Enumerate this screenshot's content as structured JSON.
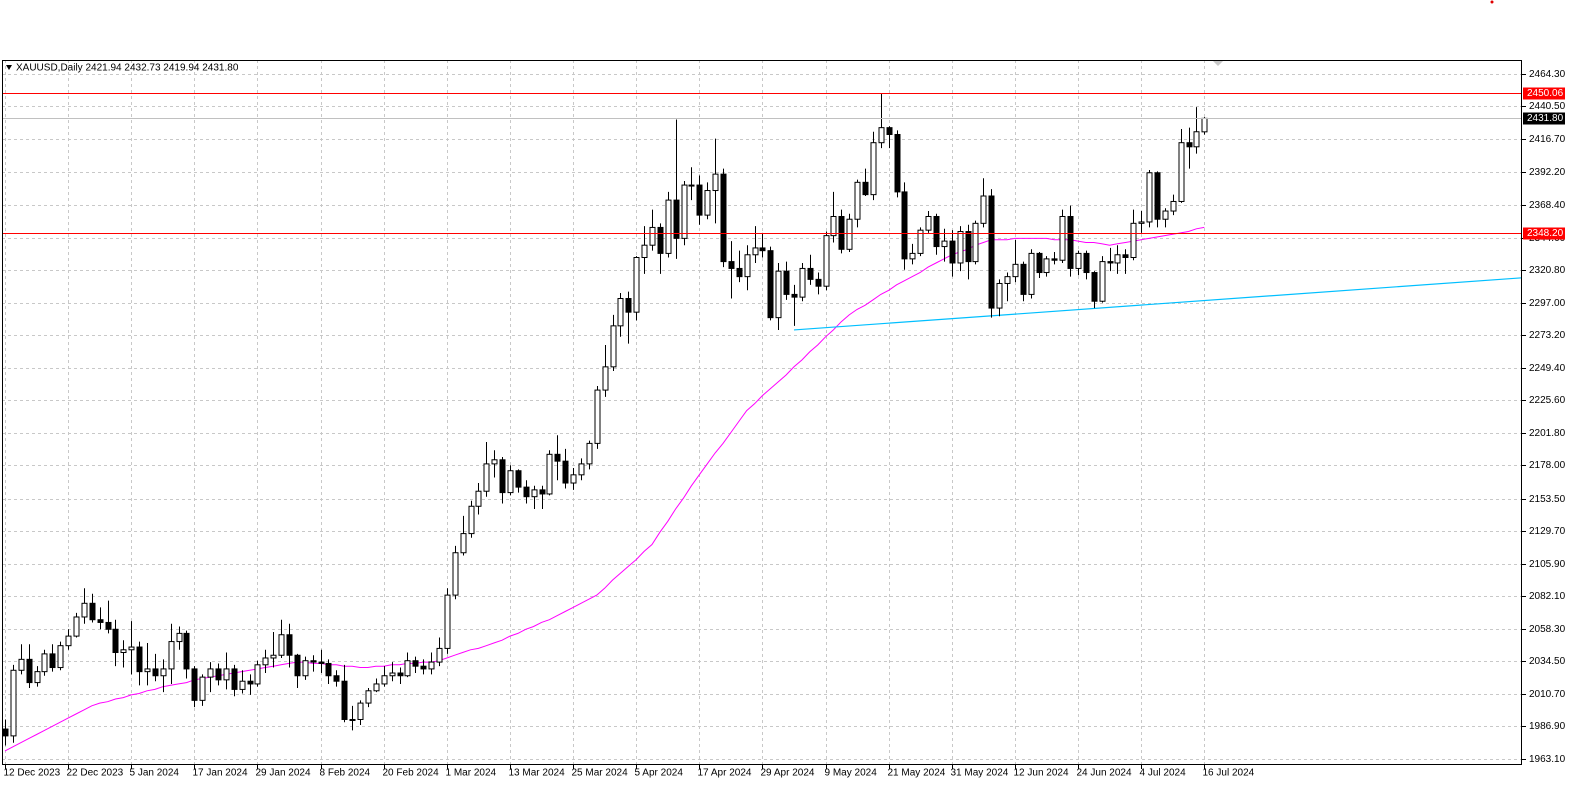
{
  "chart_data": {
    "type": "candlestick",
    "title": "XAUUSD,Daily  2421.94 2432.73 2419.94 2431.80",
    "categories": [
      "12 Dec 2023",
      null,
      null,
      null,
      null,
      null,
      null,
      null,
      "22 Dec 2023",
      null,
      null,
      null,
      null,
      null,
      null,
      null,
      "5 Jan 2024",
      null,
      null,
      null,
      null,
      null,
      null,
      null,
      "17 Jan 2024",
      null,
      null,
      null,
      null,
      null,
      null,
      null,
      "29 Jan 2024",
      null,
      null,
      null,
      null,
      null,
      null,
      null,
      "8 Feb 2024",
      null,
      null,
      null,
      null,
      null,
      null,
      null,
      "20 Feb 2024",
      null,
      null,
      null,
      null,
      null,
      null,
      null,
      "1 Mar 2024",
      null,
      null,
      null,
      null,
      null,
      null,
      null,
      "13 Mar 2024",
      null,
      null,
      null,
      null,
      null,
      null,
      null,
      "25 Mar 2024",
      null,
      null,
      null,
      null,
      null,
      null,
      null,
      "5 Apr 2024",
      null,
      null,
      null,
      null,
      null,
      null,
      null,
      "17 Apr 2024",
      null,
      null,
      null,
      null,
      null,
      null,
      null,
      "29 Apr 2024",
      null,
      null,
      null,
      null,
      null,
      null,
      null,
      "9 May 2024",
      null,
      null,
      null,
      null,
      null,
      null,
      null,
      "21 May 2024",
      null,
      null,
      null,
      null,
      null,
      null,
      null,
      "31 May 2024",
      null,
      null,
      null,
      null,
      null,
      null,
      null,
      "12 Jun 2024",
      null,
      null,
      null,
      null,
      null,
      null,
      null,
      "24 Jun 2024",
      null,
      null,
      null,
      null,
      null,
      null,
      null,
      "4 Jul 2024",
      null,
      null,
      null,
      null,
      null,
      null,
      null,
      "16 Jul 2024"
    ],
    "open": [
      1985,
      1980,
      2028,
      2036,
      2019,
      2027,
      2040,
      2030,
      2046,
      2053,
      2067,
      2077,
      2065,
      2063,
      2058,
      2041,
      2043,
      2045,
      2027,
      2029,
      2024,
      2029,
      2049,
      2055,
      2029,
      2006,
      2023,
      2029,
      2021,
      2029,
      2014,
      2020,
      2018,
      2032,
      2037,
      2039,
      2054,
      2039,
      2024,
      2035,
      2034,
      2033,
      2024,
      2020,
      1992,
      1992,
      2004,
      2013,
      2018,
      2024,
      2026,
      2024,
      2035,
      2031,
      2029,
      2034,
      2044,
      2083,
      2114,
      2128,
      2148,
      2159,
      2179,
      2182,
      2158,
      2174,
      2162,
      2155,
      2160,
      2157,
      2186,
      2181,
      2165,
      2171,
      2179,
      2194,
      2233,
      2250,
      2280,
      2300,
      2290,
      2330,
      2339,
      2352,
      2333,
      2372,
      2344,
      2383,
      2383,
      2361,
      2379,
      2391,
      2327,
      2322,
      2316,
      2332,
      2337,
      2335,
      2286,
      2320,
      2303,
      2301,
      2322,
      2314,
      2309,
      2346,
      2360,
      2336,
      2358,
      2385,
      2376,
      2414,
      2425,
      2420,
      2378,
      2329,
      2333,
      2350,
      2360,
      2338,
      2342,
      2326,
      2349,
      2327,
      2355,
      2375,
      2293,
      2311,
      2316,
      2325,
      2303,
      2333,
      2319,
      2329,
      2328,
      2360,
      2322,
      2333,
      2319,
      2298,
      2327,
      2326,
      2332,
      2330,
      2355,
      2356,
      2392,
      2358,
      2364,
      2371,
      2414,
      2411,
      2421.94
    ],
    "high": [
      1992,
      2032,
      2047,
      2047,
      2031,
      2043,
      2047,
      2049,
      2058,
      2070,
      2088,
      2084,
      2074,
      2079,
      2065,
      2050,
      2064,
      2049,
      2048,
      2040,
      2036,
      2062,
      2060,
      2057,
      2031,
      2025,
      2034,
      2033,
      2041,
      2032,
      2028,
      2025,
      2035,
      2043,
      2056,
      2065,
      2062,
      2040,
      2038,
      2039,
      2043,
      2036,
      2028,
      2032,
      2002,
      2006,
      2015,
      2022,
      2031,
      2034,
      2030,
      2041,
      2038,
      2036,
      2041,
      2052,
      2088,
      2119,
      2141,
      2152,
      2165,
      2195,
      2189,
      2184,
      2178,
      2175,
      2167,
      2163,
      2163,
      2189,
      2200,
      2190,
      2176,
      2183,
      2196,
      2236,
      2266,
      2288,
      2304,
      2305,
      2331,
      2353,
      2365,
      2355,
      2378,
      2431,
      2386,
      2396,
      2390,
      2385,
      2417,
      2395,
      2342,
      2335,
      2339,
      2353,
      2348,
      2338,
      2326,
      2327,
      2310,
      2326,
      2332,
      2319,
      2349,
      2378,
      2365,
      2362,
      2387,
      2395,
      2422,
      2450,
      2426,
      2423,
      2385,
      2340,
      2352,
      2364,
      2362,
      2351,
      2350,
      2353,
      2354,
      2357,
      2388,
      2380,
      2314,
      2319,
      2343,
      2327,
      2336,
      2334,
      2331,
      2334,
      2365,
      2368,
      2335,
      2335,
      2320,
      2331,
      2337,
      2339,
      2336,
      2365,
      2364,
      2394,
      2393,
      2366,
      2376,
      2424,
      2425,
      2440,
      2432.73
    ],
    "low": [
      1973,
      1975,
      2025,
      2015,
      2016,
      2024,
      2027,
      2028,
      2043,
      2052,
      2062,
      2063,
      2058,
      2055,
      2031,
      2030,
      2025,
      2017,
      2017,
      2020,
      2012,
      2018,
      2043,
      2022,
      2001,
      2002,
      2012,
      2017,
      2014,
      2009,
      2011,
      2010,
      2016,
      2026,
      2030,
      2037,
      2030,
      2015,
      2021,
      2027,
      2026,
      2018,
      2016,
      1990,
      1984,
      1988,
      2001,
      2012,
      2016,
      2020,
      2018,
      2023,
      2026,
      2025,
      2025,
      2031,
      2040,
      2080,
      2112,
      2125,
      2142,
      2155,
      2169,
      2150,
      2156,
      2158,
      2150,
      2146,
      2146,
      2156,
      2167,
      2161,
      2160,
      2167,
      2175,
      2190,
      2228,
      2247,
      2272,
      2267,
      2284,
      2318,
      2335,
      2318,
      2330,
      2329,
      2339,
      2372,
      2354,
      2358,
      2355,
      2323,
      2300,
      2312,
      2306,
      2326,
      2330,
      2284,
      2277,
      2299,
      2280,
      2298,
      2310,
      2303,
      2306,
      2341,
      2333,
      2334,
      2352,
      2375,
      2372,
      2410,
      2410,
      2374,
      2321,
      2325,
      2331,
      2348,
      2332,
      2327,
      2316,
      2320,
      2314,
      2325,
      2352,
      2286,
      2287,
      2298,
      2312,
      2298,
      2300,
      2315,
      2316,
      2325,
      2326,
      2316,
      2317,
      2314,
      2293,
      2297,
      2320,
      2318,
      2318,
      2328,
      2348,
      2352,
      2352,
      2352,
      2361,
      2370,
      2395,
      2406,
      2419.94
    ],
    "close": [
      1980,
      2028,
      2036,
      2019,
      2027,
      2040,
      2030,
      2046,
      2053,
      2067,
      2077,
      2065,
      2063,
      2058,
      2041,
      2043,
      2045,
      2027,
      2029,
      2024,
      2029,
      2049,
      2055,
      2029,
      2006,
      2023,
      2029,
      2021,
      2029,
      2014,
      2020,
      2018,
      2032,
      2037,
      2039,
      2054,
      2039,
      2024,
      2035,
      2034,
      2033,
      2024,
      2020,
      1992,
      1992,
      2004,
      2013,
      2018,
      2024,
      2026,
      2024,
      2035,
      2031,
      2029,
      2034,
      2044,
      2083,
      2114,
      2128,
      2148,
      2159,
      2179,
      2182,
      2158,
      2174,
      2162,
      2155,
      2160,
      2157,
      2186,
      2181,
      2165,
      2171,
      2179,
      2194,
      2233,
      2250,
      2280,
      2300,
      2290,
      2330,
      2339,
      2352,
      2333,
      2372,
      2344,
      2383,
      2383,
      2361,
      2379,
      2391,
      2327,
      2322,
      2316,
      2332,
      2337,
      2335,
      2286,
      2320,
      2303,
      2301,
      2322,
      2314,
      2309,
      2346,
      2360,
      2336,
      2358,
      2385,
      2376,
      2414,
      2425,
      2420,
      2378,
      2329,
      2333,
      2350,
      2360,
      2338,
      2342,
      2326,
      2349,
      2327,
      2355,
      2375,
      2293,
      2311,
      2316,
      2325,
      2303,
      2333,
      2319,
      2329,
      2328,
      2360,
      2322,
      2333,
      2319,
      2298,
      2327,
      2326,
      2332,
      2330,
      2355,
      2356,
      2392,
      2358,
      2364,
      2371,
      2414,
      2411,
      2422,
      2431.8
    ],
    "bull_color": "#ffffff",
    "bear_color": "#000000",
    "ma": {
      "color": "#ff00ff",
      "values": [
        1969,
        1972,
        1975,
        1978,
        1981,
        1984,
        1987,
        1990,
        1993,
        1996,
        1999,
        2002,
        2004,
        2005,
        2007,
        2008,
        2010,
        2011,
        2013,
        2014,
        2016,
        2017,
        2018,
        2019,
        2021,
        2022,
        2023,
        2024,
        2025,
        2026,
        2027,
        2028,
        2029,
        2030,
        2031,
        2032,
        2033,
        2034,
        2034,
        2033,
        2033,
        2032,
        2032,
        2031,
        2031,
        2030,
        2030,
        2031,
        2031,
        2032,
        2032,
        2033,
        2033,
        2034,
        2034,
        2035,
        2037,
        2039,
        2041,
        2043,
        2044,
        2046,
        2048,
        2050,
        2053,
        2055,
        2058,
        2060,
        2063,
        2065,
        2068,
        2071,
        2074,
        2077,
        2080,
        2083,
        2088,
        2094,
        2099,
        2104,
        2109,
        2115,
        2120,
        2129,
        2137,
        2146,
        2154,
        2163,
        2171,
        2179,
        2187,
        2194,
        2202,
        2210,
        2218,
        2223,
        2229,
        2234,
        2239,
        2244,
        2250,
        2255,
        2261,
        2266,
        2272,
        2277,
        2283,
        2288,
        2292,
        2295,
        2299,
        2303,
        2306,
        2310,
        2313,
        2316,
        2319,
        2323,
        2326,
        2329,
        2332,
        2334,
        2336,
        2339,
        2341,
        2343,
        2343,
        2343,
        2344,
        2344,
        2344,
        2344,
        2344,
        2343,
        2343,
        2343,
        2342,
        2341,
        2341,
        2340,
        2339,
        2340,
        2341,
        2342,
        2343,
        2344,
        2345,
        2346,
        2347,
        2348,
        2349,
        2351,
        2352
      ]
    },
    "trendline": {
      "color": "#00bfff",
      "points": [
        [
          100,
          2277
        ],
        [
          152,
          2298.5
        ]
      ]
    },
    "hlines": [
      {
        "value": 2450.06,
        "label": "2450.06",
        "color": "#ff0000",
        "label_bg": "#ff0000",
        "label_color": "#ffffff"
      },
      {
        "value": 2348.2,
        "label": "2348.20",
        "color": "#ff0000",
        "label_bg": "#ff0000",
        "label_color": "#ffffff"
      },
      {
        "value": 2431.8,
        "label": "2431.80",
        "color": "#c0c0c0",
        "label_bg": "#000000",
        "label_color": "#ffffff"
      }
    ],
    "ylim": [
      1958.7,
      2474.5
    ],
    "yticks": [
      {
        "value": 1963.1,
        "label": "1963.10"
      },
      {
        "value": 1986.9,
        "label": "1986.90"
      },
      {
        "value": 2010.7,
        "label": "2010.70"
      },
      {
        "value": 2034.5,
        "label": "2034.50"
      },
      {
        "value": 2058.3,
        "label": "2058.30"
      },
      {
        "value": 2082.1,
        "label": "2082.10"
      },
      {
        "value": 2105.9,
        "label": "2105.90"
      },
      {
        "value": 2129.7,
        "label": "2129.70"
      },
      {
        "value": 2153.5,
        "label": "2153.50"
      },
      {
        "value": 2178,
        "label": "2178.00"
      },
      {
        "value": 2201.8,
        "label": "2201.80"
      },
      {
        "value": 2225.6,
        "label": "2225.60"
      },
      {
        "value": 2249.4,
        "label": "2249.40"
      },
      {
        "value": 2273.2,
        "label": "2273.20"
      },
      {
        "value": 2297,
        "label": "2297.00"
      },
      {
        "value": 2320.8,
        "label": "2320.80"
      },
      {
        "value": 2344.6,
        "label": "2344.60"
      },
      {
        "value": 2368.4,
        "label": "2368.40"
      },
      {
        "value": 2392.2,
        "label": "2392.20"
      },
      {
        "value": 2416.7,
        "label": "2416.70"
      },
      {
        "value": 2440.5,
        "label": "2440.50"
      },
      {
        "value": 2464.3,
        "label": "2464.30"
      }
    ],
    "grid": true
  }
}
